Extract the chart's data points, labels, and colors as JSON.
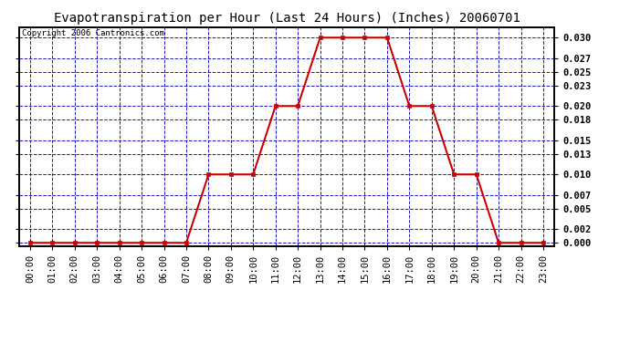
{
  "title": "Evapotranspiration per Hour (Last 24 Hours) (Inches) 20060701",
  "copyright_text": "Copyright 2006 Cantronics.com",
  "hours": [
    0,
    1,
    2,
    3,
    4,
    5,
    6,
    7,
    8,
    9,
    10,
    11,
    12,
    13,
    14,
    15,
    16,
    17,
    18,
    19,
    20,
    21,
    22,
    23
  ],
  "values": [
    0.0,
    0.0,
    0.0,
    0.0,
    0.0,
    0.0,
    0.0,
    0.0,
    0.01,
    0.01,
    0.01,
    0.02,
    0.02,
    0.03,
    0.03,
    0.03,
    0.03,
    0.02,
    0.02,
    0.01,
    0.01,
    0.0,
    0.0,
    0.0
  ],
  "xlabels": [
    "00:00",
    "01:00",
    "02:00",
    "03:00",
    "04:00",
    "05:00",
    "06:00",
    "07:00",
    "08:00",
    "09:00",
    "10:00",
    "11:00",
    "12:00",
    "13:00",
    "14:00",
    "15:00",
    "16:00",
    "17:00",
    "18:00",
    "19:00",
    "20:00",
    "21:00",
    "22:00",
    "23:00"
  ],
  "yticks": [
    0.0,
    0.002,
    0.005,
    0.007,
    0.01,
    0.013,
    0.015,
    0.018,
    0.02,
    0.023,
    0.025,
    0.027,
    0.03
  ],
  "ylim": [
    -0.0005,
    0.0315
  ],
  "xlim": [
    -0.5,
    23.5
  ],
  "line_color": "#cc0000",
  "marker_color": "#cc0000",
  "grid_color": "#0000bb",
  "bg_color": "#ffffff",
  "plot_bg_color": "#ffffff",
  "title_fontsize": 10,
  "tick_fontsize": 7.5,
  "copyright_fontsize": 6.5
}
